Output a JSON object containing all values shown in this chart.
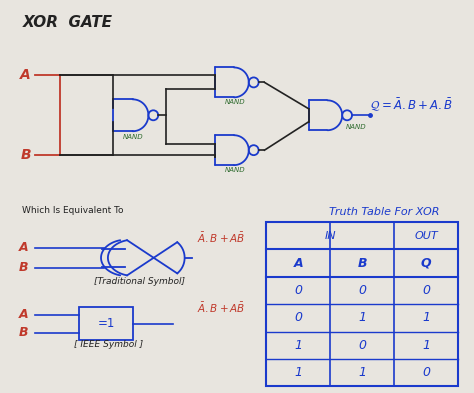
{
  "title": "XOR  GATE",
  "bg_color": "#e8e5df",
  "title_color": "#1a1a1a",
  "title_fontsize": 11,
  "red_color": "#c0392b",
  "blue_color": "#1a3acc",
  "green_color": "#2d6a2d",
  "dark_color": "#222222",
  "truth_table_title": "Truth Table For XOR",
  "truth_headers_in": "IN",
  "truth_headers_out": "OUT",
  "truth_col_a": "A",
  "truth_col_b": "B",
  "truth_col_q": "Q",
  "truth_rows": [
    [
      "0",
      "0",
      "0"
    ],
    [
      "0",
      "1",
      "1"
    ],
    [
      "1",
      "0",
      "1"
    ],
    [
      "1",
      "1",
      "0"
    ]
  ],
  "equiv_label": "Which Is Equivalent To",
  "trad_label": "[Traditional Symbol]",
  "ieee_label": "[ IEEE Symbol ]",
  "nand_labels": [
    "NAND",
    "NAND",
    "NAND",
    "NAND"
  ]
}
